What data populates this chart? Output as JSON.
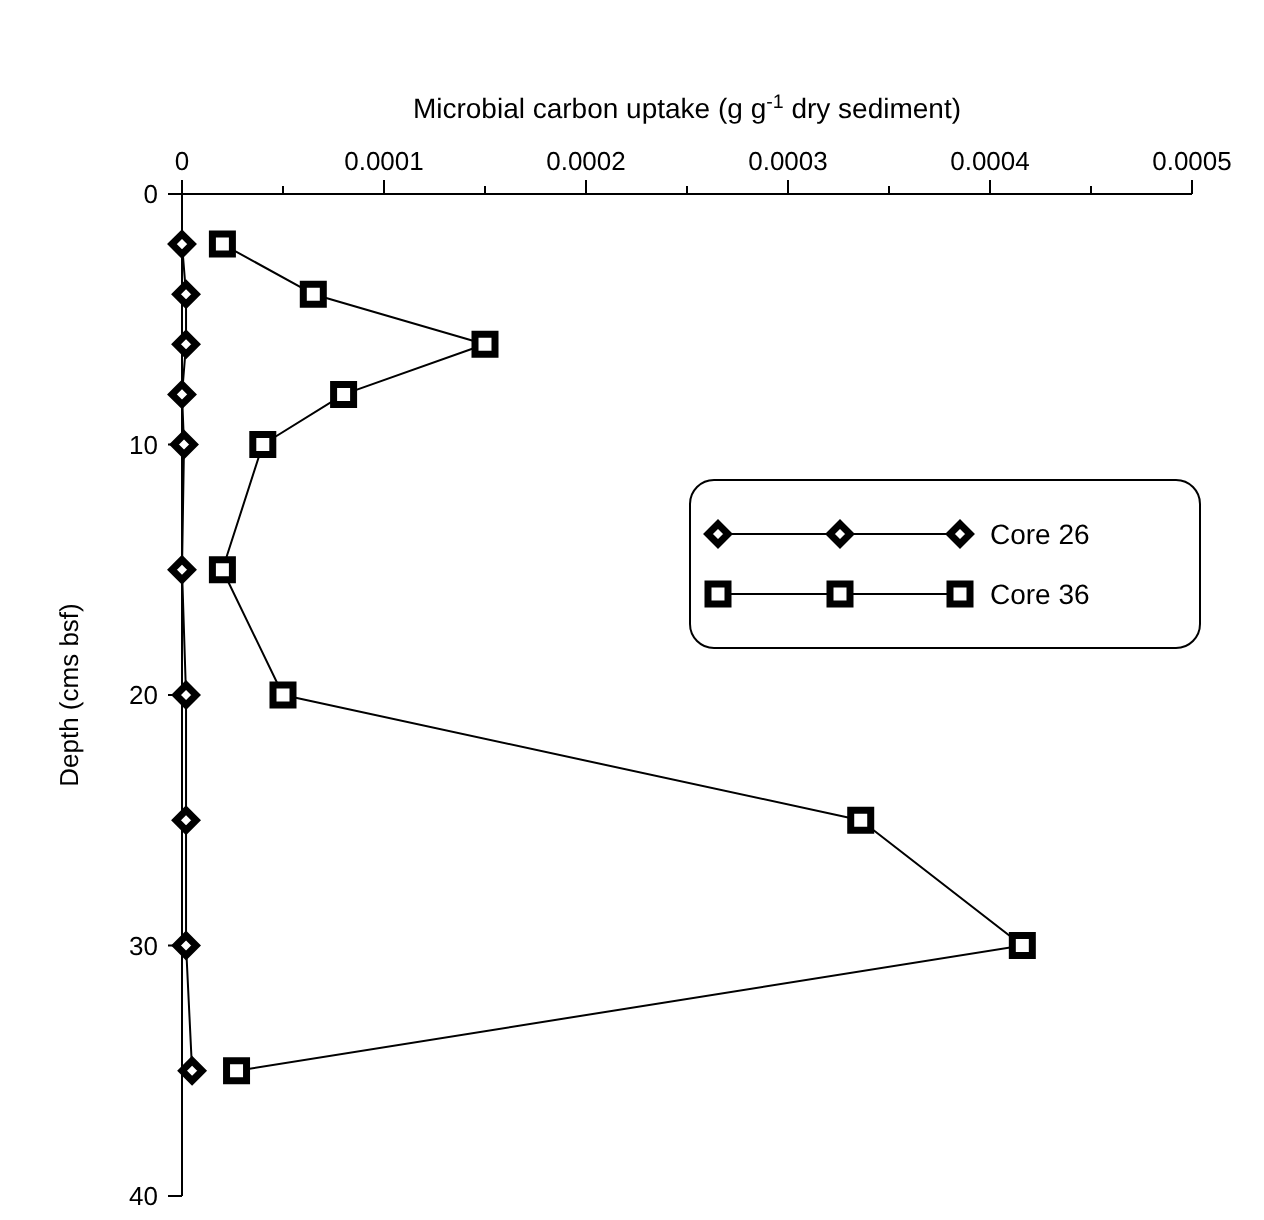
{
  "chart_data": {
    "type": "line",
    "xlabel": "Microbial carbon uptake (g g$^{-1}$ dry sediment)",
    "ylabel": "Depth (cms bsf)",
    "xlim": [
      0,
      0.0005
    ],
    "xticks": [
      0,
      {
        "value": 5e-05,
        "label": null
      },
      {
        "value": 0.0001,
        "label": "0.0001"
      },
      {
        "value": 0.00015,
        "label": null
      },
      {
        "value": 0.0002,
        "label": "0.0002"
      },
      {
        "value": 0.00025,
        "label": null
      },
      {
        "value": 0.0003,
        "label": "0.0003"
      },
      {
        "value": 0.00035,
        "label": null
      },
      {
        "value": 0.0004,
        "label": "0.0004"
      },
      {
        "value": 0.00045,
        "label": null
      },
      {
        "value": 0.0005,
        "label": "0.0005"
      }
    ],
    "ylim": [
      40,
      0
    ],
    "yticks": [
      0,
      10,
      20,
      30,
      40
    ],
    "grid": false,
    "legend": "right",
    "orientation": "horizontal",
    "series": [
      {
        "name": "Core 26",
        "color": "#000000",
        "marker": "diamond",
        "x": [
          2,
          4,
          6,
          8,
          10,
          15,
          20,
          25,
          30,
          35
        ],
        "values": [
          0,
          2e-06,
          2e-06,
          0,
          1e-06,
          0,
          2e-06,
          2e-06,
          2e-06,
          5e-06
        ]
      },
      {
        "name": "Core 36",
        "color": "#000000",
        "marker": "square",
        "x": [
          2,
          4,
          6,
          8,
          10,
          15,
          20,
          25,
          30,
          35
        ],
        "values": [
          2e-05,
          6.5e-05,
          0.00015,
          8e-05,
          4e-05,
          2e-05,
          5e-05,
          0.000336,
          0.000416,
          2.7e-05
        ]
      }
    ]
  }
}
